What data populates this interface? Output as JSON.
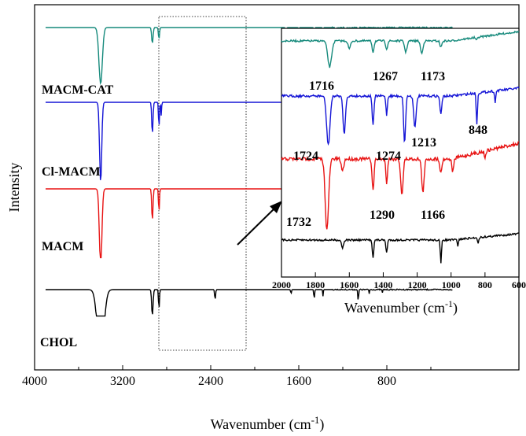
{
  "chart_data": {
    "type": "line",
    "x_label_prefix": "Wavenumber (cm",
    "x_label_sup": "-1",
    "x_label_suffix": ")",
    "ylabel": "Intensity",
    "xlim": [
      4000,
      -400
    ],
    "x_ticks": [
      4000,
      3200,
      2400,
      1600,
      800
    ],
    "grid": false,
    "colors": {
      "teal": "#168a7c",
      "blue": "#1515d6",
      "red": "#e81414",
      "black": "#000000"
    },
    "series": [
      {
        "name": "MACM-CAT",
        "color": "#168a7c"
      },
      {
        "name": "Cl-MACM",
        "color": "#1515d6"
      },
      {
        "name": "MACM",
        "color": "#e81414"
      },
      {
        "name": "CHOL",
        "color": "#000000"
      }
    ],
    "inset": {
      "xlim": [
        2000,
        600
      ],
      "x_ticks": [
        2000,
        1800,
        1600,
        1400,
        1200,
        1000,
        800,
        600
      ],
      "x_label_prefix": "Wavenumber (cm",
      "x_label_sup": "-1",
      "x_label_suffix": ")",
      "annotations": [
        {
          "series": "MACM-CAT",
          "peaks": [
            "1716",
            "1267",
            "1173"
          ]
        },
        {
          "series": "Cl-MACM",
          "peaks": [
            "1724",
            "1274",
            "1213",
            "848"
          ]
        },
        {
          "series": "MACM",
          "peaks": [
            "1732",
            "1290",
            "1166"
          ]
        }
      ]
    }
  }
}
